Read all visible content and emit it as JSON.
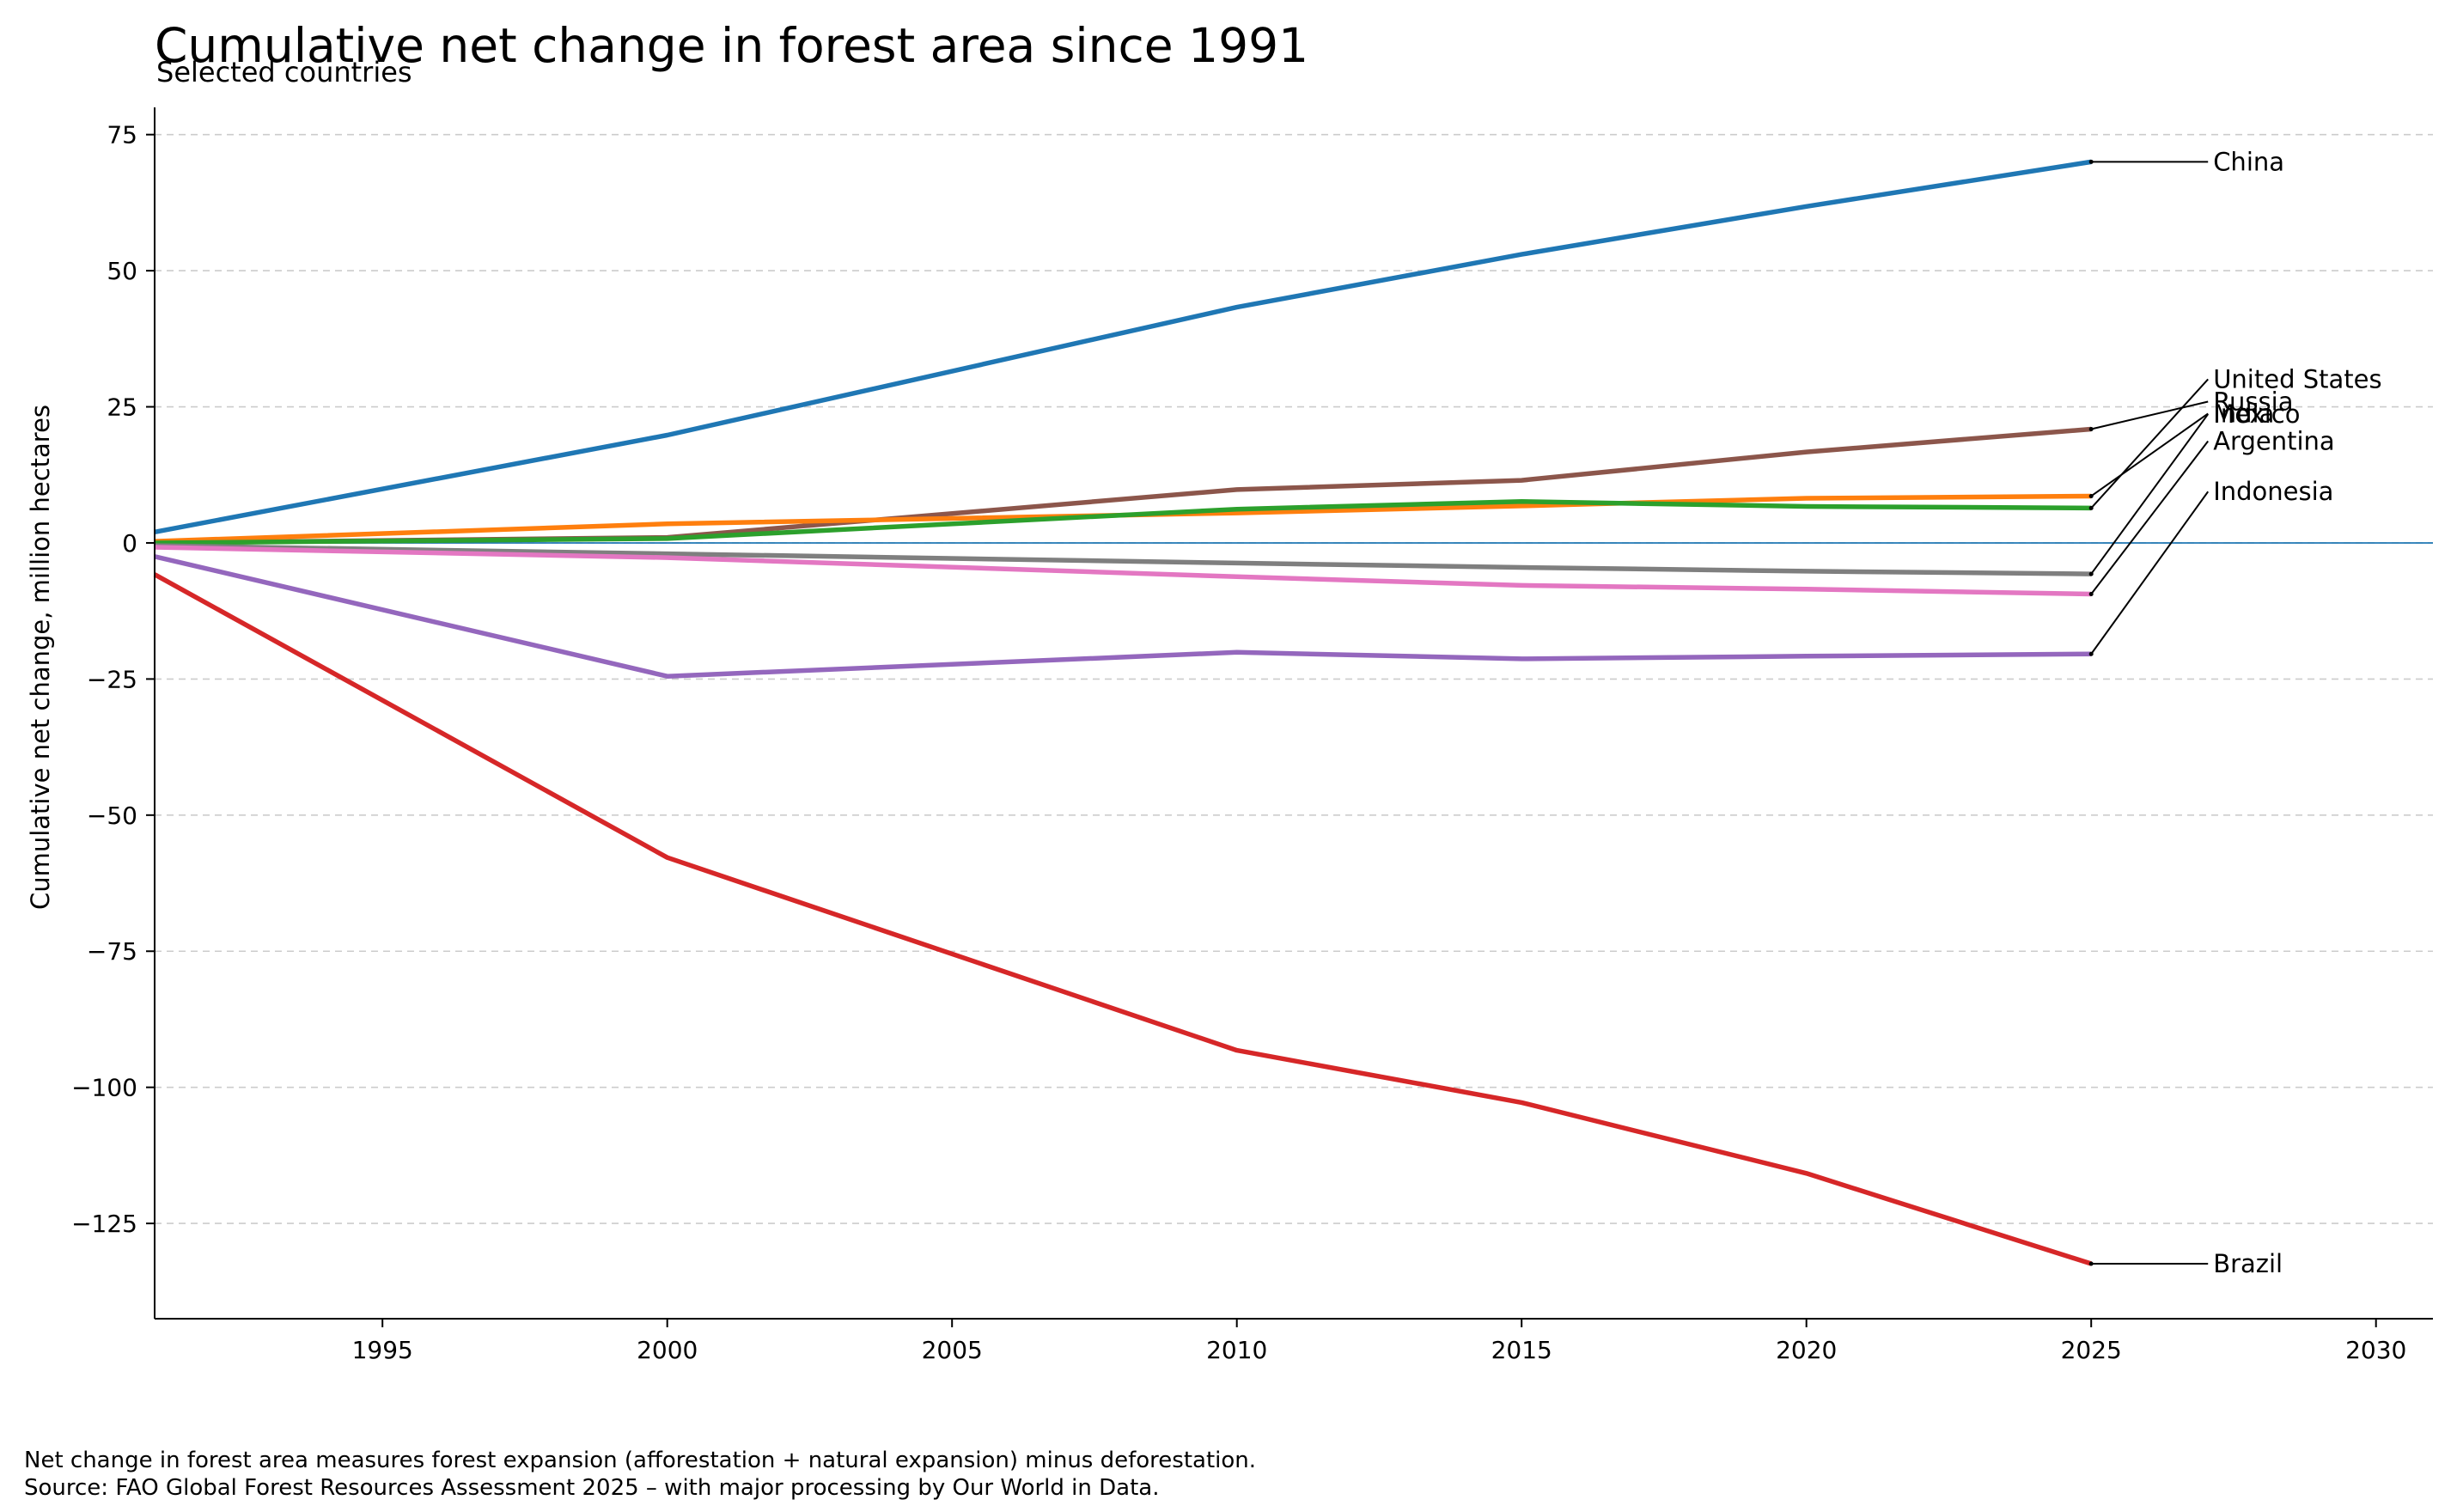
{
  "chart_data": {
    "type": "line",
    "title": "Cumulative net change in forest area since 1991",
    "subtitle": "Selected countries",
    "xlabel": "",
    "ylabel": "Cumulative net change, million hectares",
    "xlim": [
      1991,
      2031
    ],
    "ylim": [
      -142.5,
      80
    ],
    "x_ticks": [
      1995,
      2000,
      2005,
      2010,
      2015,
      2020,
      2025,
      2030
    ],
    "x_tick_labels": [
      "1995",
      "2000",
      "2005",
      "2010",
      "2015",
      "2020",
      "2025",
      "2030"
    ],
    "y_ticks": [
      75,
      50,
      25,
      0,
      -25,
      -50,
      -75,
      -100,
      -125
    ],
    "y_tick_labels": [
      "75",
      "50",
      "25",
      "0",
      "−25",
      "−50",
      "−75",
      "−100",
      "−125"
    ],
    "grid": "horizontal dashed",
    "zero_line": true,
    "legend": "direct labels at right end of lines",
    "x": [
      1991,
      2000,
      2010,
      2015,
      2020,
      2025
    ],
    "series": [
      {
        "name": "China",
        "color": "#1f77b4",
        "values": [
          2,
          19.8,
          43.3,
          53,
          61.8,
          70
        ]
      },
      {
        "name": "Russia",
        "color": "#8c564b",
        "values": [
          0,
          1,
          9.8,
          11.5,
          16.7,
          20.9
        ]
      },
      {
        "name": "India",
        "color": "#ff7f0e",
        "values": [
          0.3,
          3.5,
          5.5,
          6.8,
          8.2,
          8.6
        ]
      },
      {
        "name": "United States",
        "color": "#2ca02c",
        "values": [
          0,
          0.8,
          6.2,
          7.6,
          6.7,
          6.4
        ]
      },
      {
        "name": "Mexico",
        "color": "#7f7f7f",
        "values": [
          -0.5,
          -2,
          -3.7,
          -4.5,
          -5.2,
          -5.7
        ]
      },
      {
        "name": "Argentina",
        "color": "#e377c2",
        "values": [
          -0.8,
          -2.7,
          -6.2,
          -7.8,
          -8.5,
          -9.4
        ]
      },
      {
        "name": "Indonesia",
        "color": "#9467bd",
        "values": [
          -2.5,
          -24.5,
          -20.1,
          -21.3,
          -20.8,
          -20.4
        ]
      },
      {
        "name": "Brazil",
        "color": "#d62728",
        "values": [
          -5.8,
          -57.8,
          -93.2,
          -102.8,
          -115.8,
          -132.4
        ]
      }
    ],
    "footnote": [
      "Net change in forest area measures forest expansion (afforestation + natural expansion) minus deforestation.",
      "Source: FAO Global Forest Resources Assessment 2025 – with major processing by Our World in Data."
    ]
  }
}
